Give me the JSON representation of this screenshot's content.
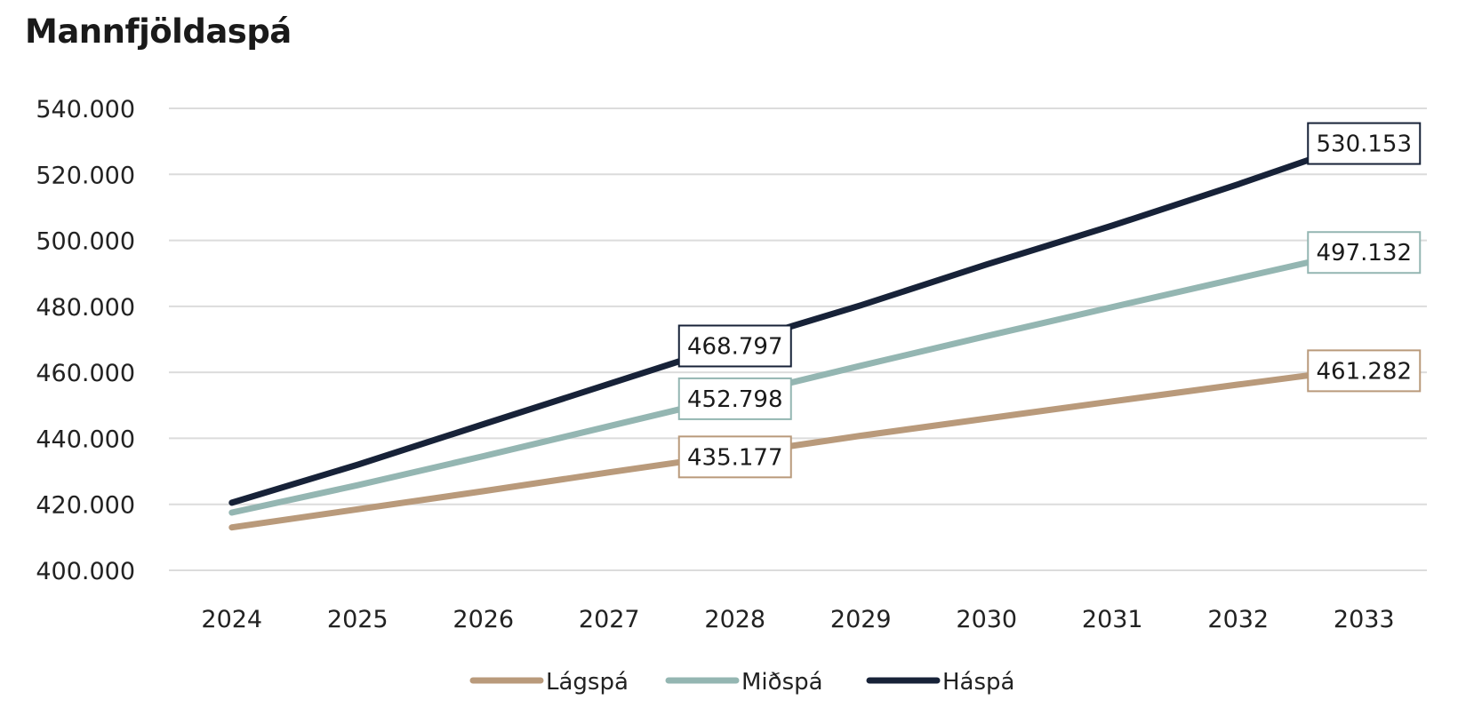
{
  "chart_data": {
    "type": "line",
    "title": "Mannfjöldaspá",
    "categories": [
      "2024",
      "2025",
      "2026",
      "2027",
      "2028",
      "2029",
      "2030",
      "2031",
      "2032",
      "2033"
    ],
    "ylim": [
      400000,
      540000
    ],
    "yticks": [
      400000,
      420000,
      440000,
      460000,
      480000,
      500000,
      520000,
      540000
    ],
    "ytick_labels": [
      "400.000",
      "420.000",
      "440.000",
      "460.000",
      "480.000",
      "500.000",
      "520.000",
      "540.000"
    ],
    "grid": "horizontal",
    "legend_position": "bottom",
    "series": [
      {
        "name": "Lágspá",
        "color": "#b99a7b",
        "values": [
          413000,
          418500,
          424000,
          429700,
          435177,
          440800,
          446000,
          451200,
          456300,
          461282
        ]
      },
      {
        "name": "Miðspá",
        "color": "#94b6b2",
        "values": [
          417500,
          425800,
          434600,
          443700,
          452798,
          462000,
          471000,
          479800,
          488500,
          497132
        ]
      },
      {
        "name": "Háspá",
        "color": "#172238",
        "values": [
          420500,
          432000,
          444300,
          456500,
          468797,
          480300,
          492700,
          504500,
          517000,
          530153
        ]
      }
    ],
    "data_labels": [
      {
        "series": 2,
        "index": 4,
        "text": "468.797"
      },
      {
        "series": 1,
        "index": 4,
        "text": "452.798"
      },
      {
        "series": 0,
        "index": 4,
        "text": "435.177"
      },
      {
        "series": 2,
        "index": 9,
        "text": "530.153"
      },
      {
        "series": 1,
        "index": 9,
        "text": "497.132"
      },
      {
        "series": 0,
        "index": 9,
        "text": "461.282"
      }
    ]
  }
}
